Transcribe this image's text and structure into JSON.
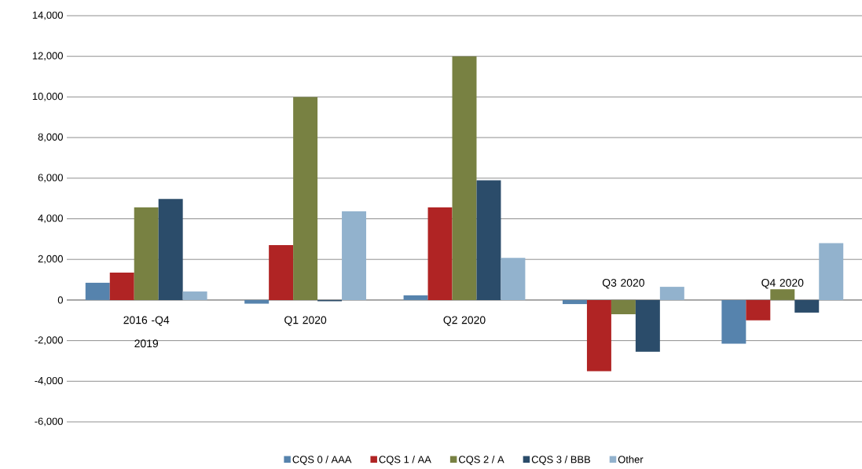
{
  "chart_data": {
    "type": "bar",
    "categories": [
      "2016 -Q4 2019",
      "Q1 2020",
      "Q2 2020",
      "Q3 2020",
      "Q4 2020"
    ],
    "series": [
      {
        "name": "CQS 0 / AAA",
        "color": "#5683ad",
        "values": [
          850,
          -180,
          230,
          -200,
          -2150
        ]
      },
      {
        "name": "CQS 1 / AA",
        "color": "#b02424",
        "values": [
          1350,
          2700,
          4560,
          -3500,
          -1000
        ]
      },
      {
        "name": "CQS 2 / A",
        "color": "#788142",
        "values": [
          4560,
          10000,
          12000,
          -700,
          530
        ]
      },
      {
        "name": "CQS 3 / BBB",
        "color": "#2b4c6a",
        "values": [
          4980,
          -60,
          5900,
          -2550,
          -620
        ]
      },
      {
        "name": "Other",
        "color": "#92b2cd",
        "values": [
          420,
          4370,
          2080,
          650,
          2800
        ]
      }
    ],
    "ylim": [
      -6000,
      14000
    ],
    "yticks": [
      {
        "value": -6000,
        "label": "-6,000"
      },
      {
        "value": -4000,
        "label": "-4,000"
      },
      {
        "value": -2000,
        "label": "-2,000"
      },
      0,
      {
        "value": 2000,
        "label": "2,000"
      },
      {
        "value": 4000,
        "label": "4,000"
      },
      {
        "value": 6000,
        "label": "6,000"
      },
      {
        "value": 8000,
        "label": "8,000"
      },
      {
        "value": 10000,
        "label": "10,000"
      },
      {
        "value": 12000,
        "label": "12,000"
      },
      {
        "value": 14000,
        "label": "14,000"
      }
    ],
    "grid": "y",
    "legend": "bottom"
  }
}
